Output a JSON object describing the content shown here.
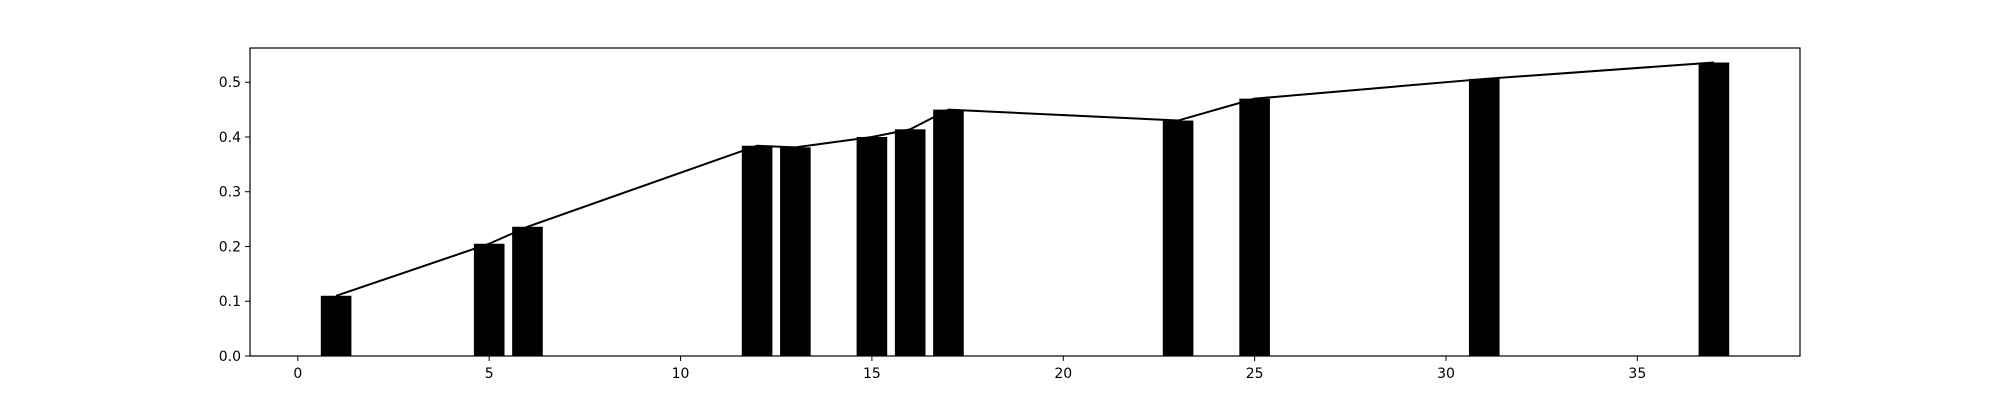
{
  "chart_data": {
    "type": "bar",
    "title": "",
    "xlabel": "",
    "ylabel": "",
    "xlim": [
      -1.25,
      39.25
    ],
    "ylim": [
      0,
      0.5625
    ],
    "x_ticks": [
      0,
      5,
      10,
      15,
      20,
      25,
      30,
      35
    ],
    "x_tick_labels": [
      "0",
      "5",
      "10",
      "15",
      "20",
      "25",
      "30",
      "35"
    ],
    "y_ticks": [
      0.0,
      0.1,
      0.2,
      0.3,
      0.4,
      0.5
    ],
    "y_tick_labels": [
      "0.0",
      "0.1",
      "0.2",
      "0.3",
      "0.4",
      "0.5"
    ],
    "grid": false,
    "bar_color": "#000000",
    "line_color": "#000000",
    "series": [
      {
        "x": [
          1,
          5,
          6,
          12,
          13,
          15,
          16,
          17,
          23,
          25,
          31,
          37
        ],
        "values": [
          0.11,
          0.205,
          0.236,
          0.384,
          0.381,
          0.4,
          0.414,
          0.45,
          0.43,
          0.47,
          0.506,
          0.536
        ]
      }
    ],
    "overlay_line": {
      "x": [
        1,
        5,
        6,
        12,
        13,
        15,
        16,
        17,
        23,
        25,
        31,
        37
      ],
      "values": [
        0.11,
        0.205,
        0.236,
        0.384,
        0.381,
        0.4,
        0.414,
        0.45,
        0.43,
        0.47,
        0.506,
        0.536
      ]
    }
  }
}
